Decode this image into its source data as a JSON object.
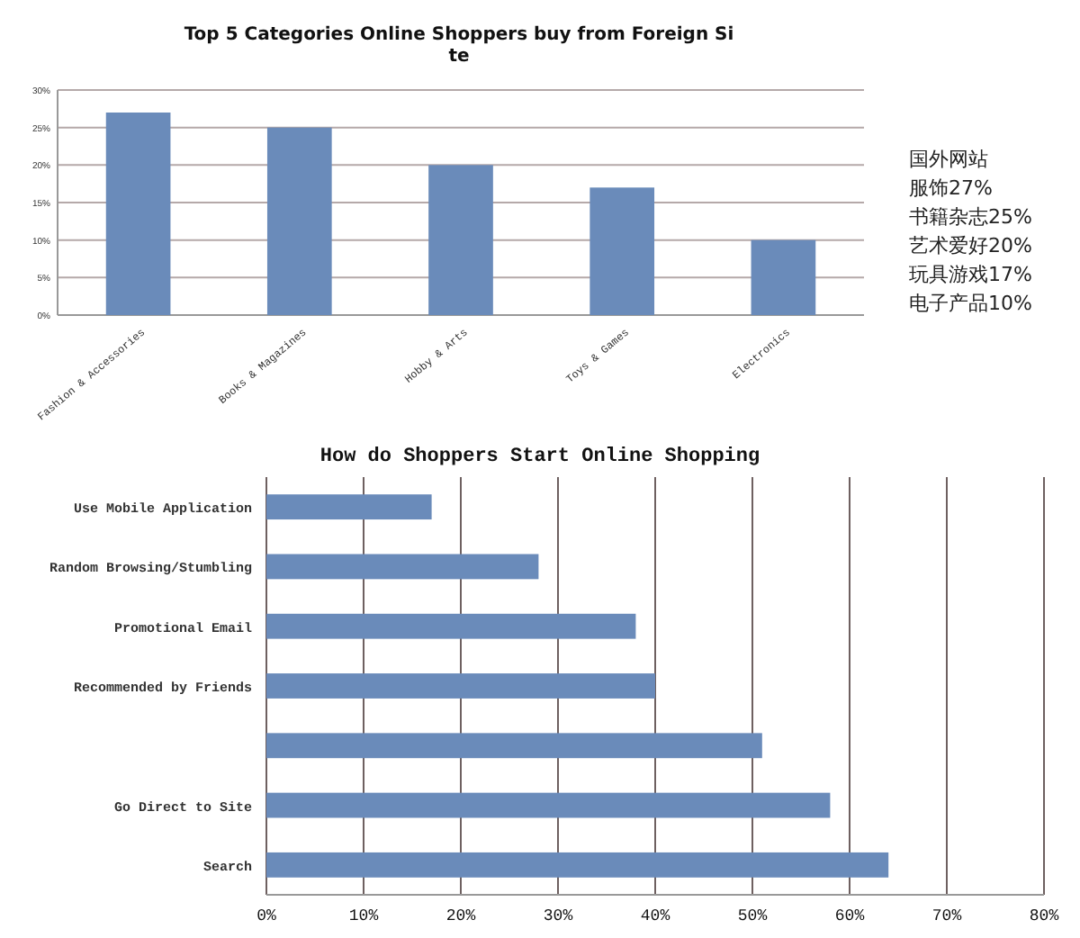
{
  "chart_data": [
    {
      "type": "bar",
      "title": "Top 5 Categories Online Shoppers buy from Foreign Si te",
      "categories": [
        "Fashion & Accessories",
        "Books & Magazines",
        "Hobby & Arts",
        "Toys & Games",
        "Electronics"
      ],
      "values": [
        27,
        25,
        20,
        17,
        10
      ],
      "color": "#6a8bba",
      "ylim": [
        0,
        30
      ],
      "yticks": [
        {
          "value": 0,
          "label": "0%"
        },
        {
          "value": 5,
          "label": "5%"
        },
        {
          "value": 10,
          "label": "10%"
        },
        {
          "value": 15,
          "label": "15%"
        },
        {
          "value": 20,
          "label": "20%"
        },
        {
          "value": 25,
          "label": "25%"
        },
        {
          "value": 30,
          "label": "30%"
        }
      ],
      "grid": "y"
    },
    {
      "type": "other",
      "title": "国外网站",
      "annotations": [
        "服饰27%",
        "书籍杂志25%",
        "艺术爱好20%",
        "玩具游戏17%",
        "电子产品10%"
      ]
    },
    {
      "type": "bar",
      "orientation": "horizontal",
      "title": "How do Shoppers Start Online Shopping",
      "categories": [
        "Use Mobile Application",
        "Random Browsing/Stumbling",
        "Promotional Email",
        "Recommended by Friends",
        null,
        "Go Direct to Site",
        "Search"
      ],
      "values": [
        17,
        28,
        38,
        40,
        51,
        58,
        64
      ],
      "color": "#6a8bba",
      "xlim": [
        0,
        80
      ],
      "xticks": [
        {
          "value": 0,
          "label": "0%"
        },
        {
          "value": 10,
          "label": "10%"
        },
        {
          "value": 20,
          "label": "20%"
        },
        {
          "value": 30,
          "label": "30%"
        },
        {
          "value": 40,
          "label": "40%"
        },
        {
          "value": 50,
          "label": "50%"
        },
        {
          "value": 60,
          "label": "60%"
        },
        {
          "value": 70,
          "label": "70%"
        },
        {
          "value": 80,
          "label": "80%"
        }
      ],
      "grid": "x"
    }
  ]
}
